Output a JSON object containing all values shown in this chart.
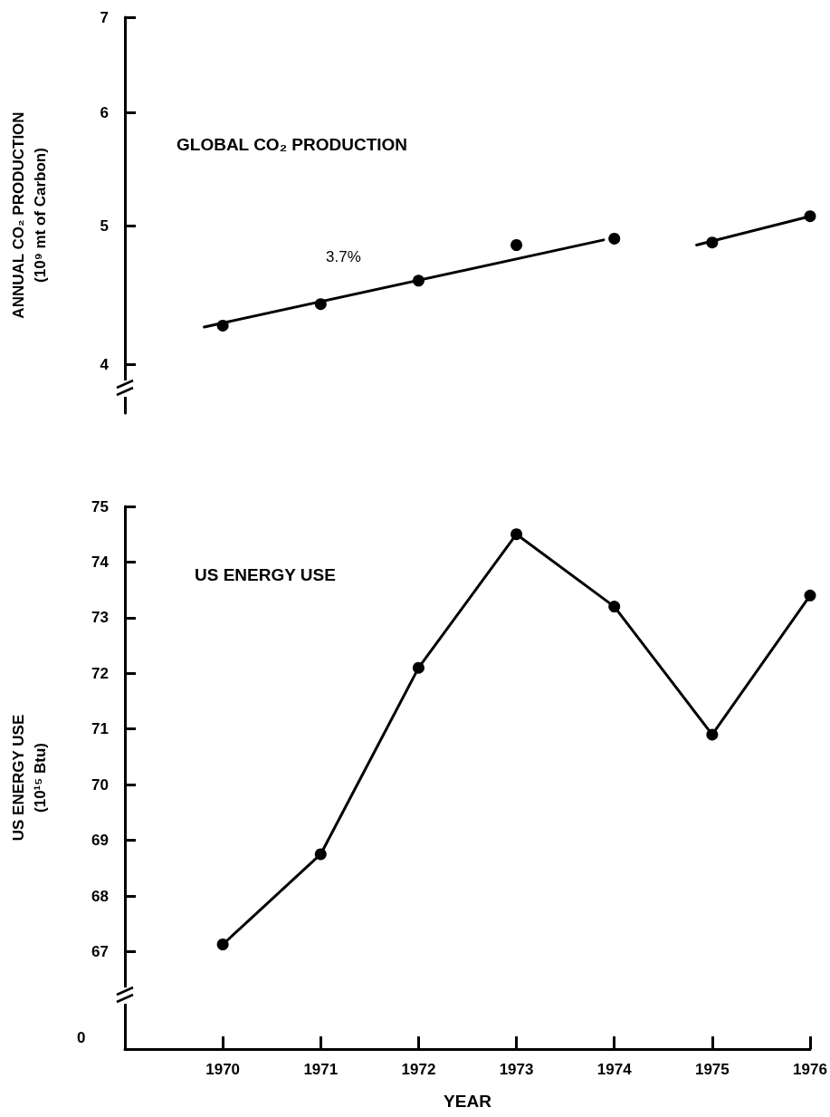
{
  "chart_data": [
    {
      "type": "scatter",
      "title": "GLOBAL CO₂ PRODUCTION",
      "ylabel": "ANNUAL CO₂ PRODUCTION\n(10⁹ mt of Carbon)",
      "log": "y",
      "xlim": [
        1969,
        1976
      ],
      "ylim": [
        3.7,
        7
      ],
      "yticks": [
        4,
        5,
        6,
        7
      ],
      "tick_labels": "y",
      "grid": false,
      "marker": "circle",
      "annotations": [
        "3.7%"
      ],
      "series": [
        {
          "type": "scatter",
          "color": "#000000",
          "x": [
            1970,
            1971,
            1972,
            1973,
            1974,
            1975,
            1976
          ],
          "values": [
            4.26,
            4.41,
            4.58,
            4.85,
            4.9,
            4.87,
            5.08
          ]
        },
        {
          "type": "line",
          "color": "#000000",
          "marker": "none",
          "line_style": "solid",
          "x": [
            1969.81,
            1973.89
          ],
          "values": [
            4.25,
            4.89
          ]
        },
        {
          "type": "line",
          "color": "#000000",
          "marker": "none",
          "line_style": "solid",
          "x": [
            1974.84,
            1976
          ],
          "values": [
            4.85,
            5.08
          ]
        }
      ]
    },
    {
      "type": "line",
      "title": "US ENERGY USE",
      "ylabel": "US ENERGY USE\n(10¹⁵ Btu)",
      "xlabel": "YEAR",
      "xlim": [
        1969,
        1976
      ],
      "xticks": [
        1970,
        1971,
        1972,
        1973,
        1974,
        1975,
        1976
      ],
      "ylim": [
        65.25,
        75
      ],
      "yticks": [
        67,
        68,
        69,
        70,
        71,
        72,
        73,
        74,
        75
      ],
      "annotations": [
        "0"
      ],
      "grid": false,
      "marker": "circle",
      "line_style": "solid",
      "series": [
        {
          "color": "#000000",
          "x": [
            1970,
            1971,
            1972,
            1973,
            1974,
            1975,
            1976
          ],
          "values": [
            67.13,
            68.75,
            72.1,
            74.5,
            73.2,
            70.9,
            73.4
          ]
        }
      ]
    }
  ]
}
